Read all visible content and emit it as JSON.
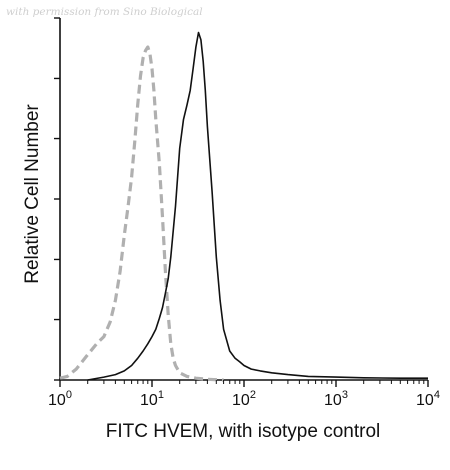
{
  "watermark": "with permission from Sino Biological",
  "chart_data": {
    "type": "line",
    "xscale": "log",
    "xlim": [
      1,
      10000
    ],
    "xlabel": "FITC HVEM, with isotype control",
    "ylabel": "Relative Cell Number",
    "x_ticks": [
      {
        "base": "10",
        "exp": "0",
        "value": 1
      },
      {
        "base": "10",
        "exp": "1",
        "value": 10
      },
      {
        "base": "10",
        "exp": "2",
        "value": 100
      },
      {
        "base": "10",
        "exp": "3",
        "value": 1000
      },
      {
        "base": "10",
        "exp": "4",
        "value": 10000
      }
    ],
    "ylim": [
      0,
      100
    ],
    "y_ticks": [
      0,
      16.7,
      33.3,
      50,
      66.7,
      83.3,
      100
    ],
    "grid": false,
    "series": [
      {
        "style": "dashed",
        "color": "#b0b0b0",
        "points": [
          [
            1.0,
            0.5
          ],
          [
            1.2,
            1
          ],
          [
            1.5,
            3
          ],
          [
            2.0,
            7
          ],
          [
            2.5,
            10
          ],
          [
            3.0,
            12
          ],
          [
            3.5,
            16
          ],
          [
            4.0,
            22
          ],
          [
            4.5,
            30
          ],
          [
            5.0,
            40
          ],
          [
            5.5,
            48
          ],
          [
            6.0,
            56
          ],
          [
            6.5,
            66
          ],
          [
            7.0,
            76
          ],
          [
            7.5,
            84
          ],
          [
            8.0,
            89
          ],
          [
            8.5,
            91
          ],
          [
            9.0,
            92
          ],
          [
            9.5,
            90
          ],
          [
            10.0,
            86
          ],
          [
            10.5,
            80
          ],
          [
            11.0,
            72
          ],
          [
            12.0,
            60
          ],
          [
            13.0,
            45
          ],
          [
            14.0,
            30
          ],
          [
            15.0,
            18
          ],
          [
            16.0,
            10
          ],
          [
            17.0,
            6
          ],
          [
            18.0,
            4
          ],
          [
            20.0,
            2
          ],
          [
            24.0,
            1
          ],
          [
            30.0,
            0.5
          ],
          [
            40.0,
            0.2
          ],
          [
            60.0,
            0
          ]
        ]
      },
      {
        "style": "solid",
        "color": "#111111",
        "points": [
          [
            2.0,
            0
          ],
          [
            3.0,
            0.8
          ],
          [
            4.0,
            1.5
          ],
          [
            5.0,
            2.5
          ],
          [
            6.0,
            4
          ],
          [
            7.0,
            6
          ],
          [
            8.0,
            8
          ],
          [
            9.0,
            10
          ],
          [
            10.0,
            12
          ],
          [
            11.0,
            14
          ],
          [
            12.0,
            17
          ],
          [
            13.0,
            20
          ],
          [
            14.0,
            24
          ],
          [
            15.0,
            28
          ],
          [
            16.0,
            34
          ],
          [
            18.0,
            48
          ],
          [
            20.0,
            64
          ],
          [
            22.0,
            72
          ],
          [
            24.0,
            76
          ],
          [
            26.0,
            80
          ],
          [
            28.0,
            86
          ],
          [
            30.0,
            92
          ],
          [
            32.0,
            96
          ],
          [
            34.0,
            94
          ],
          [
            36.0,
            88
          ],
          [
            38.0,
            80
          ],
          [
            40.0,
            70
          ],
          [
            45.0,
            52
          ],
          [
            50.0,
            34
          ],
          [
            55.0,
            22
          ],
          [
            60.0,
            14
          ],
          [
            70.0,
            8
          ],
          [
            80.0,
            6
          ],
          [
            90.0,
            5
          ],
          [
            100.0,
            4
          ],
          [
            120.0,
            3
          ],
          [
            150.0,
            2.5
          ],
          [
            200.0,
            2
          ],
          [
            300.0,
            1.5
          ],
          [
            500.0,
            1
          ],
          [
            1000.0,
            0.8
          ],
          [
            2000.0,
            0.6
          ],
          [
            5000.0,
            0.5
          ],
          [
            10000.0,
            0.5
          ]
        ]
      }
    ]
  }
}
